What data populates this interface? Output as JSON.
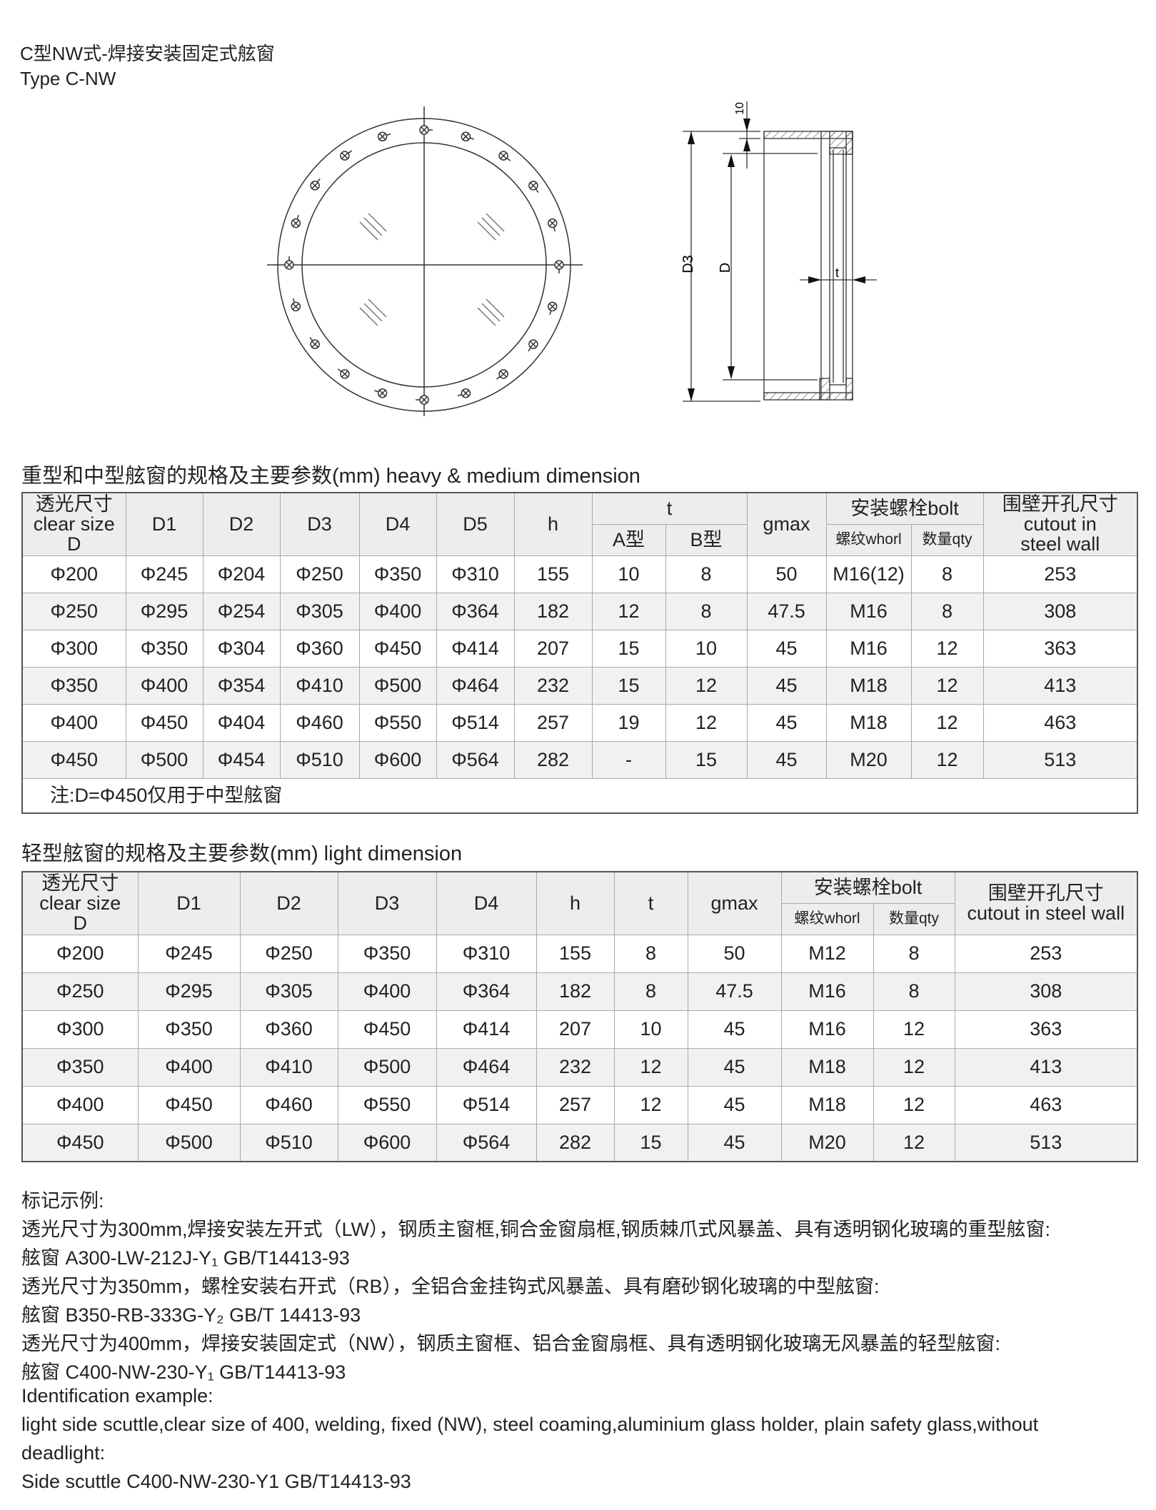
{
  "title": {
    "cn": "C型NW式-焊接安装固定式舷窗",
    "en": "Type C-NW"
  },
  "drawing": {
    "labels": {
      "d3": "D3",
      "d": "D",
      "ten": "10",
      "t": "t"
    }
  },
  "heavy": {
    "heading": "重型和中型舷窗的规格及主要参数(mm)  heavy & medium dimension",
    "header": {
      "clear": [
        "透光尺寸",
        "clear size",
        "D"
      ],
      "cols": [
        "D1",
        "D2",
        "D3",
        "D4",
        "D5",
        "h"
      ],
      "t": "t",
      "tA": "A型",
      "tB": "B型",
      "gmax": "gmax",
      "bolt": "安装螺栓bolt",
      "whorl": "螺纹whorl",
      "qty": "数量qty",
      "cutout": [
        "围壁开孔尺寸",
        "cutout in",
        "steel wall"
      ]
    },
    "rows": [
      [
        "Φ200",
        "Φ245",
        "Φ204",
        "Φ250",
        "Φ350",
        "Φ310",
        "155",
        "10",
        "8",
        "50",
        "M16(12)",
        "8",
        "253"
      ],
      [
        "Φ250",
        "Φ295",
        "Φ254",
        "Φ305",
        "Φ400",
        "Φ364",
        "182",
        "12",
        "8",
        "47.5",
        "M16",
        "8",
        "308"
      ],
      [
        "Φ300",
        "Φ350",
        "Φ304",
        "Φ360",
        "Φ450",
        "Φ414",
        "207",
        "15",
        "10",
        "45",
        "M16",
        "12",
        "363"
      ],
      [
        "Φ350",
        "Φ400",
        "Φ354",
        "Φ410",
        "Φ500",
        "Φ464",
        "232",
        "15",
        "12",
        "45",
        "M18",
        "12",
        "413"
      ],
      [
        "Φ400",
        "Φ450",
        "Φ404",
        "Φ460",
        "Φ550",
        "Φ514",
        "257",
        "19",
        "12",
        "45",
        "M18",
        "12",
        "463"
      ],
      [
        "Φ450",
        "Φ500",
        "Φ454",
        "Φ510",
        "Φ600",
        "Φ564",
        "282",
        "-",
        "15",
        "45",
        "M20",
        "12",
        "513"
      ]
    ],
    "note": "注:D=Φ450仅用于中型舷窗"
  },
  "light": {
    "heading": "轻型舷窗的规格及主要参数(mm)  light dimension",
    "header": {
      "clear": [
        "透光尺寸",
        "clear size",
        "D"
      ],
      "cols": [
        "D1",
        "D2",
        "D3",
        "D4",
        "h",
        "t",
        "gmax"
      ],
      "bolt": "安装螺栓bolt",
      "whorl": "螺纹whorl",
      "qty": "数量qty",
      "cutout": [
        "围壁开孔尺寸",
        "cutout in steel wall"
      ]
    },
    "rows": [
      [
        "Φ200",
        "Φ245",
        "Φ250",
        "Φ350",
        "Φ310",
        "155",
        "8",
        "50",
        "M12",
        "8",
        "253"
      ],
      [
        "Φ250",
        "Φ295",
        "Φ305",
        "Φ400",
        "Φ364",
        "182",
        "8",
        "47.5",
        "M16",
        "8",
        "308"
      ],
      [
        "Φ300",
        "Φ350",
        "Φ360",
        "Φ450",
        "Φ414",
        "207",
        "10",
        "45",
        "M16",
        "12",
        "363"
      ],
      [
        "Φ350",
        "Φ400",
        "Φ410",
        "Φ500",
        "Φ464",
        "232",
        "12",
        "45",
        "M18",
        "12",
        "413"
      ],
      [
        "Φ400",
        "Φ450",
        "Φ460",
        "Φ550",
        "Φ514",
        "257",
        "12",
        "45",
        "M18",
        "12",
        "463"
      ],
      [
        "Φ450",
        "Φ500",
        "Φ510",
        "Φ600",
        "Φ564",
        "282",
        "15",
        "45",
        "M20",
        "12",
        "513"
      ]
    ]
  },
  "examples": [
    "标记示例:",
    "透光尺寸为300mm,焊接安装左开式（LW），钢质主窗框,铜合金窗扇框,钢质棘爪式风暴盖、具有透明钢化玻璃的重型舷窗:",
    "舷窗 A300-LW-212J-Y₁  GB/T14413-93",
    "透光尺寸为350mm，螺栓安装右开式（RB），全铝合金挂钩式风暴盖、具有磨砂钢化玻璃的中型舷窗:",
    "舷窗 B350-RB-333G-Y₂  GB/T  14413-93",
    "透光尺寸为400mm，焊接安装固定式（NW），钢质主窗框、铝合金窗扇框、具有透明钢化玻璃无风暴盖的轻型舷窗:",
    "舷窗 C400-NW-230-Y₁  GB/T14413-93",
    "Identification example:",
    "light side scuttle,clear size of 400, welding, fixed (NW), steel coaming,aluminium glass holder, plain safety glass,without",
    "deadlight:",
    "Side scuttle C400-NW-230-Y1 GB/T14413-93"
  ]
}
